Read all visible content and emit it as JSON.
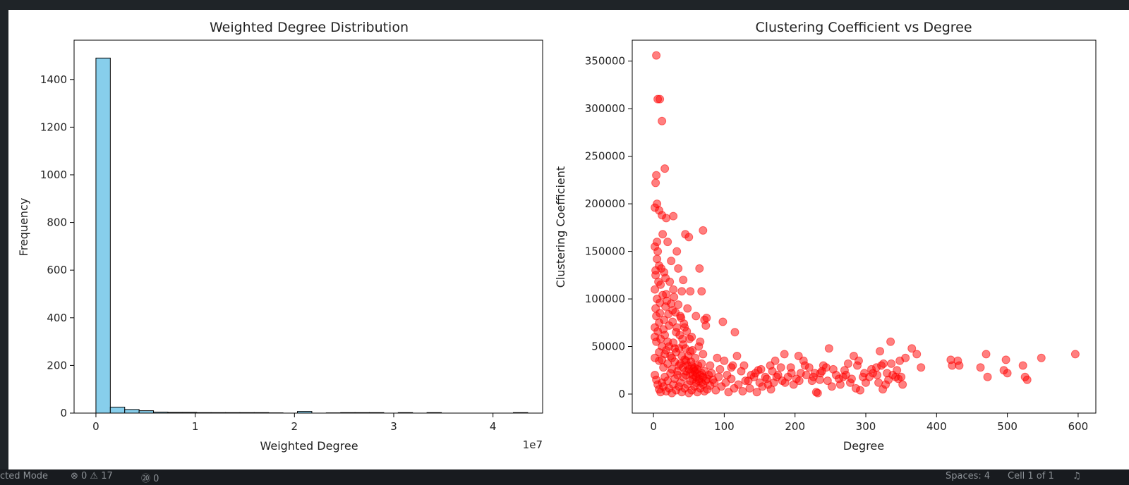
{
  "chart_data": [
    {
      "type": "bar",
      "title": "Weighted Degree Distribution",
      "xlabel": "Weighted Degree",
      "ylabel": "Frequency",
      "x_offset_label": "1e7",
      "xlim": [
        -0.22,
        4.5
      ],
      "ylim": [
        0,
        1565
      ],
      "xticks": [
        0,
        1,
        2,
        3,
        4
      ],
      "yticks": [
        0,
        200,
        400,
        600,
        800,
        1000,
        1200,
        1400
      ],
      "bar_color": "#87ceeb",
      "edge_color": "#000000",
      "bin_edges": [
        0,
        0.145,
        0.29,
        0.435,
        0.58,
        0.725,
        0.87,
        1.015,
        1.16,
        1.305,
        1.45,
        1.595,
        1.74,
        1.885,
        2.03,
        2.175,
        2.32,
        2.465,
        2.61,
        2.755,
        2.9,
        3.045,
        3.19,
        3.335,
        3.48,
        3.625,
        3.77,
        3.915,
        4.06,
        4.205,
        4.35
      ],
      "values": [
        1490,
        25,
        15,
        10,
        4,
        3,
        3,
        2,
        2,
        2,
        2,
        2,
        1,
        0,
        7,
        0,
        1,
        2,
        2,
        2,
        0,
        2,
        0,
        2,
        0,
        0,
        0,
        0,
        0,
        2
      ]
    },
    {
      "type": "scatter",
      "title": "Clustering Coefficient vs Degree",
      "xlabel": "Degree",
      "ylabel": "Clustering Coefficient",
      "xlim": [
        -30,
        625
      ],
      "ylim": [
        -20000,
        372000
      ],
      "xticks": [
        0,
        100,
        200,
        300,
        400,
        500,
        600
      ],
      "yticks": [
        0,
        50000,
        100000,
        150000,
        200000,
        250000,
        300000,
        350000
      ],
      "marker_color": "#ff0000",
      "marker_alpha": 0.5,
      "points": [
        [
          4,
          356000
        ],
        [
          6,
          310000
        ],
        [
          9,
          310000
        ],
        [
          12,
          287000
        ],
        [
          4,
          230000
        ],
        [
          16,
          237000
        ],
        [
          3,
          222000
        ],
        [
          5,
          200000
        ],
        [
          2,
          196000
        ],
        [
          8,
          193000
        ],
        [
          12,
          188000
        ],
        [
          18,
          185000
        ],
        [
          28,
          187000
        ],
        [
          5,
          160000
        ],
        [
          2,
          155000
        ],
        [
          6,
          150000
        ],
        [
          13,
          168000
        ],
        [
          20,
          160000
        ],
        [
          33,
          150000
        ],
        [
          45,
          168000
        ],
        [
          50,
          165000
        ],
        [
          70,
          172000
        ],
        [
          3,
          130000
        ],
        [
          8,
          135000
        ],
        [
          15,
          128000
        ],
        [
          25,
          140000
        ],
        [
          35,
          132000
        ],
        [
          42,
          120000
        ],
        [
          65,
          132000
        ],
        [
          2,
          110000
        ],
        [
          5,
          100000
        ],
        [
          10,
          115000
        ],
        [
          18,
          105000
        ],
        [
          28,
          110000
        ],
        [
          40,
          108000
        ],
        [
          52,
          108000
        ],
        [
          68,
          108000
        ],
        [
          3,
          90000
        ],
        [
          9,
          85000
        ],
        [
          17,
          92000
        ],
        [
          27,
          88000
        ],
        [
          38,
          82000
        ],
        [
          48,
          90000
        ],
        [
          60,
          82000
        ],
        [
          72,
          78000
        ],
        [
          75,
          80000
        ],
        [
          2,
          70000
        ],
        [
          8,
          75000
        ],
        [
          14,
          68000
        ],
        [
          22,
          72000
        ],
        [
          32,
          65000
        ],
        [
          44,
          70000
        ],
        [
          54,
          60000
        ],
        [
          66,
          55000
        ],
        [
          74,
          72000
        ],
        [
          98,
          76000
        ],
        [
          115,
          65000
        ],
        [
          4,
          55000
        ],
        [
          12,
          50000
        ],
        [
          20,
          55000
        ],
        [
          30,
          48000
        ],
        [
          42,
          52000
        ],
        [
          52,
          45000
        ],
        [
          64,
          50000
        ],
        [
          70,
          42000
        ],
        [
          2,
          38000
        ],
        [
          8,
          35000
        ],
        [
          16,
          42000
        ],
        [
          26,
          38000
        ],
        [
          36,
          30000
        ],
        [
          46,
          35000
        ],
        [
          58,
          28000
        ],
        [
          68,
          32000
        ],
        [
          80,
          30000
        ],
        [
          90,
          38000
        ],
        [
          100,
          35000
        ],
        [
          110,
          28000
        ],
        [
          118,
          40000
        ],
        [
          128,
          30000
        ],
        [
          138,
          20000
        ],
        [
          148,
          25000
        ],
        [
          158,
          18000
        ],
        [
          165,
          30000
        ],
        [
          172,
          35000
        ],
        [
          180,
          28000
        ],
        [
          185,
          42000
        ],
        [
          195,
          22000
        ],
        [
          205,
          40000
        ],
        [
          212,
          35000
        ],
        [
          220,
          28000
        ],
        [
          228,
          22000
        ],
        [
          235,
          15000
        ],
        [
          240,
          30000
        ],
        [
          248,
          48000
        ],
        [
          258,
          20000
        ],
        [
          270,
          25000
        ],
        [
          275,
          32000
        ],
        [
          283,
          40000
        ],
        [
          290,
          35000
        ],
        [
          298,
          22000
        ],
        [
          305,
          18000
        ],
        [
          315,
          28000
        ],
        [
          320,
          45000
        ],
        [
          325,
          32000
        ],
        [
          330,
          22000
        ],
        [
          335,
          55000
        ],
        [
          342,
          18000
        ],
        [
          348,
          35000
        ],
        [
          352,
          10000
        ],
        [
          356,
          38000
        ],
        [
          365,
          48000
        ],
        [
          372,
          42000
        ],
        [
          378,
          28000
        ],
        [
          420,
          36000
        ],
        [
          422,
          30000
        ],
        [
          430,
          35000
        ],
        [
          432,
          30000
        ],
        [
          462,
          28000
        ],
        [
          470,
          42000
        ],
        [
          472,
          18000
        ],
        [
          498,
          36000
        ],
        [
          495,
          25000
        ],
        [
          500,
          22000
        ],
        [
          522,
          30000
        ],
        [
          525,
          18000
        ],
        [
          528,
          15000
        ],
        [
          548,
          38000
        ],
        [
          596,
          42000
        ],
        [
          2,
          20000
        ],
        [
          4,
          15000
        ],
        [
          6,
          10000
        ],
        [
          8,
          5000
        ],
        [
          10,
          2000
        ],
        [
          12,
          12000
        ],
        [
          14,
          8000
        ],
        [
          16,
          18000
        ],
        [
          18,
          3000
        ],
        [
          20,
          14000
        ],
        [
          22,
          6000
        ],
        [
          24,
          22000
        ],
        [
          26,
          1000
        ],
        [
          28,
          10000
        ],
        [
          30,
          16000
        ],
        [
          32,
          4000
        ],
        [
          34,
          20000
        ],
        [
          36,
          8000
        ],
        [
          38,
          12000
        ],
        [
          40,
          2000
        ],
        [
          42,
          18000
        ],
        [
          44,
          6000
        ],
        [
          46,
          24000
        ],
        [
          48,
          10000
        ],
        [
          50,
          1000
        ],
        [
          52,
          14000
        ],
        [
          54,
          4000
        ],
        [
          56,
          20000
        ],
        [
          58,
          8000
        ],
        [
          60,
          12000
        ],
        [
          62,
          2000
        ],
        [
          64,
          16000
        ],
        [
          66,
          6000
        ],
        [
          68,
          22000
        ],
        [
          70,
          10000
        ],
        [
          72,
          3000
        ],
        [
          74,
          14000
        ],
        [
          76,
          5000
        ],
        [
          78,
          20000
        ],
        [
          80,
          9000
        ],
        [
          84,
          15000
        ],
        [
          88,
          4000
        ],
        [
          92,
          18000
        ],
        [
          96,
          8000
        ],
        [
          102,
          12000
        ],
        [
          106,
          2000
        ],
        [
          110,
          16000
        ],
        [
          114,
          6000
        ],
        [
          120,
          10000
        ],
        [
          126,
          3000
        ],
        [
          130,
          14000
        ],
        [
          136,
          6000
        ],
        [
          142,
          18000
        ],
        [
          146,
          2000
        ],
        [
          150,
          12000
        ],
        [
          154,
          8000
        ],
        [
          160,
          16000
        ],
        [
          166,
          5000
        ],
        [
          170,
          12000
        ],
        [
          176,
          20000
        ],
        [
          182,
          14000
        ],
        [
          190,
          18000
        ],
        [
          198,
          10000
        ],
        [
          202,
          16000
        ],
        [
          208,
          22000
        ],
        [
          216,
          20000
        ],
        [
          224,
          14000
        ],
        [
          230,
          2000
        ],
        [
          232,
          1000
        ],
        [
          236,
          22000
        ],
        [
          244,
          28000
        ],
        [
          252,
          8000
        ],
        [
          262,
          16000
        ],
        [
          268,
          18000
        ],
        [
          278,
          12000
        ],
        [
          286,
          6000
        ],
        [
          292,
          4000
        ],
        [
          296,
          18000
        ],
        [
          310,
          22000
        ],
        [
          318,
          12000
        ],
        [
          324,
          5000
        ],
        [
          332,
          15000
        ],
        [
          338,
          20000
        ],
        [
          344,
          25000
        ],
        [
          350,
          18000
        ],
        [
          3,
          125000
        ],
        [
          5,
          142000
        ],
        [
          7,
          118000
        ],
        [
          9,
          96000
        ],
        [
          11,
          132000
        ],
        [
          13,
          104000
        ],
        [
          15,
          78000
        ],
        [
          17,
          122000
        ],
        [
          19,
          98000
        ],
        [
          21,
          84000
        ],
        [
          23,
          118000
        ],
        [
          25,
          95000
        ],
        [
          27,
          76000
        ],
        [
          29,
          102000
        ],
        [
          31,
          86000
        ],
        [
          33,
          70000
        ],
        [
          35,
          94000
        ],
        [
          37,
          62000
        ],
        [
          39,
          80000
        ],
        [
          41,
          58000
        ],
        [
          43,
          74000
        ],
        [
          45,
          48000
        ],
        [
          47,
          66000
        ],
        [
          49,
          40000
        ],
        [
          51,
          58000
        ],
        [
          53,
          34000
        ],
        [
          55,
          46000
        ],
        [
          57,
          26000
        ],
        [
          59,
          38000
        ],
        [
          61,
          22000
        ],
        [
          63,
          30000
        ],
        [
          2,
          60000
        ],
        [
          4,
          82000
        ],
        [
          6,
          66000
        ],
        [
          8,
          44000
        ],
        [
          10,
          58000
        ],
        [
          12,
          36000
        ],
        [
          14,
          28000
        ],
        [
          16,
          62000
        ],
        [
          18,
          46000
        ],
        [
          20,
          32000
        ],
        [
          22,
          50000
        ],
        [
          24,
          40000
        ],
        [
          26,
          26000
        ],
        [
          28,
          54000
        ],
        [
          30,
          34000
        ],
        [
          32,
          44000
        ],
        [
          34,
          24000
        ],
        [
          36,
          48000
        ],
        [
          38,
          32000
        ],
        [
          40,
          40000
        ],
        [
          42,
          28000
        ],
        [
          44,
          36000
        ],
        [
          46,
          20000
        ],
        [
          48,
          30000
        ],
        [
          50,
          26000
        ],
        [
          52,
          22000
        ],
        [
          54,
          30000
        ],
        [
          56,
          16000
        ],
        [
          58,
          24000
        ],
        [
          60,
          18000
        ],
        [
          62,
          26000
        ],
        [
          64,
          14000
        ],
        [
          66,
          20000
        ],
        [
          68,
          12000
        ],
        [
          70,
          18000
        ],
        [
          72,
          24000
        ],
        [
          76,
          16000
        ],
        [
          82,
          22000
        ],
        [
          86,
          12000
        ],
        [
          94,
          26000
        ],
        [
          104,
          20000
        ],
        [
          112,
          30000
        ],
        [
          124,
          24000
        ],
        [
          134,
          14000
        ],
        [
          144,
          22000
        ],
        [
          152,
          26000
        ],
        [
          162,
          10000
        ],
        [
          168,
          24000
        ],
        [
          174,
          18000
        ],
        [
          186,
          12000
        ],
        [
          194,
          28000
        ],
        [
          206,
          14000
        ],
        [
          214,
          30000
        ],
        [
          226,
          18000
        ],
        [
          238,
          24000
        ],
        [
          246,
          14000
        ],
        [
          254,
          26000
        ],
        [
          264,
          10000
        ],
        [
          272,
          20000
        ],
        [
          280,
          16000
        ],
        [
          288,
          30000
        ],
        [
          300,
          12000
        ],
        [
          308,
          26000
        ],
        [
          316,
          20000
        ],
        [
          322,
          30000
        ],
        [
          328,
          10000
        ],
        [
          336,
          32000
        ],
        [
          346,
          16000
        ]
      ]
    }
  ],
  "status_bar": {
    "mode": "cted Mode",
    "problems": "⊗ 0 ⚠ 17",
    "ports": "⑳ 0",
    "spaces": "Spaces: 4",
    "cell": "Cell 1 of 1"
  }
}
